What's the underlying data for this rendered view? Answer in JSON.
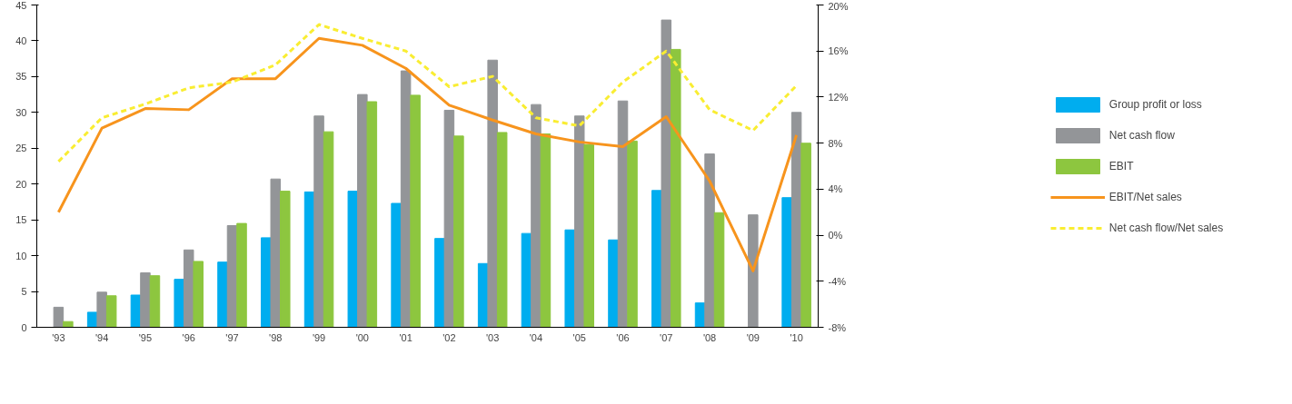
{
  "chart_data": {
    "type": "bar",
    "categories": [
      "'93",
      "'94",
      "'95",
      "'96",
      "'97",
      "'98",
      "'99",
      "'00",
      "'01",
      "'02",
      "'03",
      "'04",
      "'05",
      "'06",
      "'07",
      "'08",
      "'09",
      "'10"
    ],
    "ylim": [
      0,
      45
    ],
    "yticks": [
      0,
      5,
      10,
      15,
      20,
      25,
      30,
      35,
      40,
      45
    ],
    "y2lim": [
      -8,
      20
    ],
    "y2ticks": [
      {
        "value": -8,
        "label": "-8%"
      },
      {
        "value": -4,
        "label": "-4%"
      },
      {
        "value": 0,
        "label": "0%"
      },
      {
        "value": 4,
        "label": "4%"
      },
      {
        "value": 8,
        "label": "8%"
      },
      {
        "value": 12,
        "label": "12%"
      },
      {
        "value": 16,
        "label": "16%"
      },
      {
        "value": 20,
        "label": "20%"
      }
    ],
    "grid": false,
    "legend": "right",
    "series": [
      {
        "name": "Group profit or loss",
        "color": "#00adef",
        "values": [
          null,
          2.1,
          4.5,
          6.7,
          9.1,
          12.5,
          18.9,
          19.0,
          17.3,
          12.4,
          8.9,
          13.1,
          13.6,
          12.2,
          19.1,
          3.4,
          null,
          18.1
        ]
      },
      {
        "name": "Net cash flow",
        "color": "#939598",
        "values": [
          2.8,
          4.9,
          7.6,
          10.8,
          14.2,
          20.7,
          29.5,
          32.5,
          35.8,
          30.3,
          37.3,
          31.1,
          29.5,
          31.6,
          42.9,
          24.2,
          15.7,
          30.0
        ]
      },
      {
        "name": "EBIT",
        "color": "#8dc63f",
        "values": [
          0.8,
          4.4,
          7.2,
          9.2,
          14.5,
          19.0,
          27.3,
          31.5,
          32.4,
          26.7,
          27.2,
          27.0,
          25.5,
          26.0,
          38.8,
          16.0,
          null,
          25.7
        ]
      },
      {
        "name": "EBIT/Net sales",
        "type": "line",
        "axis": "y2",
        "line_style": "solid",
        "color": "#f7941d",
        "values": [
          2.0,
          9.3,
          11.0,
          10.9,
          13.6,
          13.6,
          17.1,
          16.5,
          14.5,
          11.3,
          10.0,
          8.8,
          8.1,
          7.7,
          10.3,
          4.7,
          -3.1,
          8.7
        ]
      },
      {
        "name": "Net cash flow/Net sales",
        "type": "line",
        "axis": "y2",
        "line_style": "dashed",
        "color": "#f9ed32",
        "values": [
          6.4,
          10.2,
          11.4,
          12.8,
          13.3,
          14.8,
          18.3,
          17.1,
          16.0,
          12.9,
          13.8,
          10.2,
          9.5,
          13.3,
          16.0,
          10.9,
          9.1,
          13.0
        ]
      }
    ]
  }
}
